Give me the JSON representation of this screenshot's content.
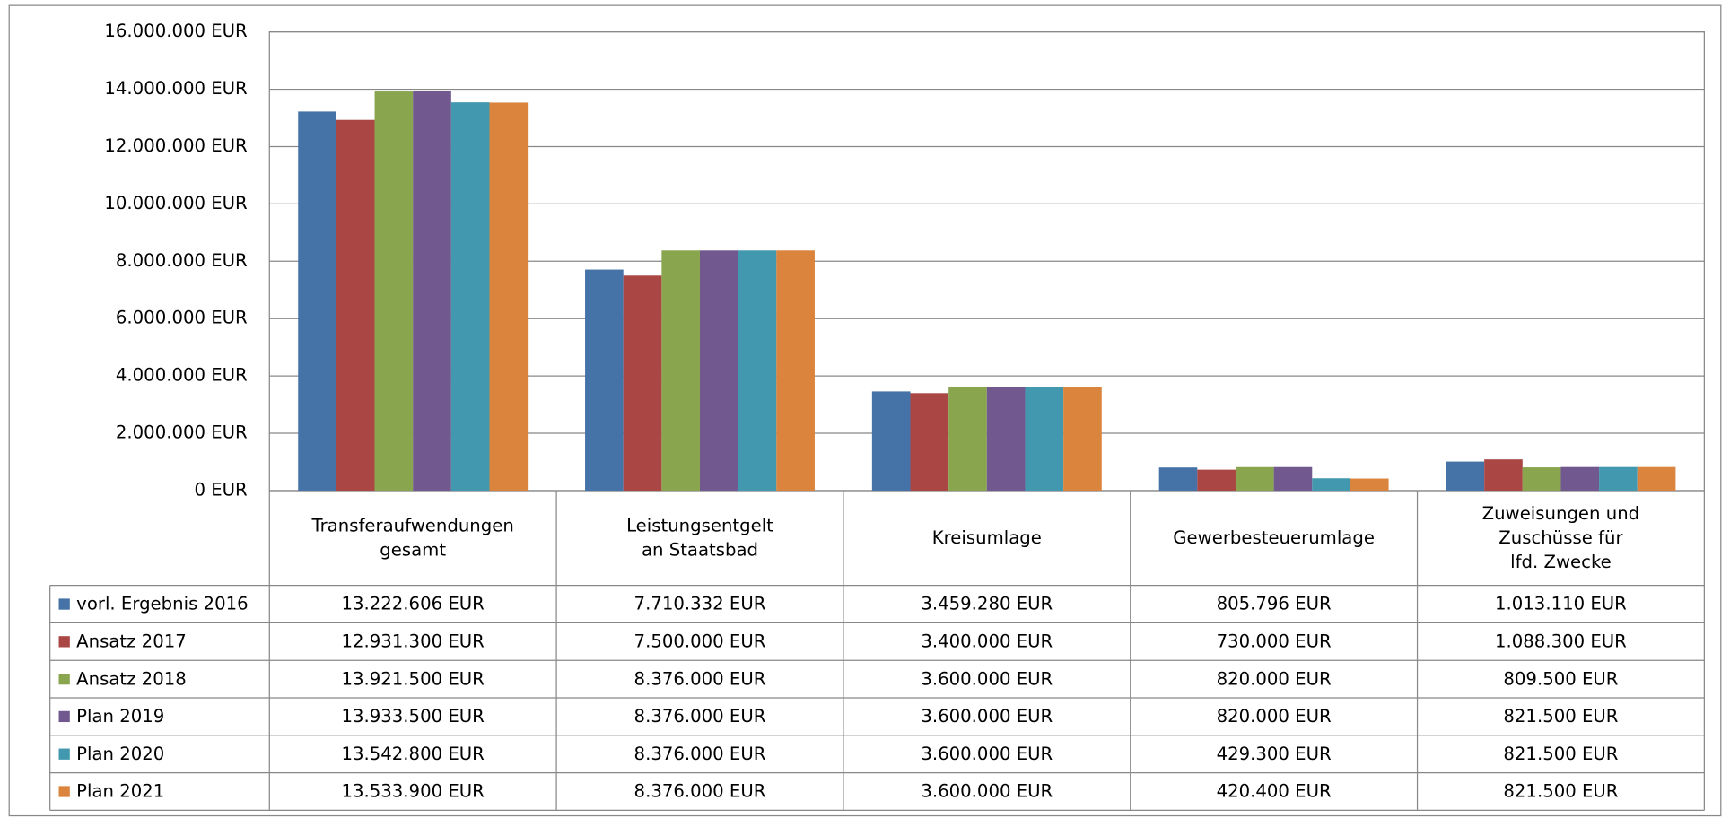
{
  "chart_data": {
    "type": "bar",
    "categories": [
      "Transferaufwendungen\ngesamt",
      "Leistungsentgelt\nan Staatsbad",
      "Kreisumlage",
      "Gewerbesteuerumlage",
      "Zuweisungen und\nZuschüsse für\nlfd. Zwecke"
    ],
    "series": [
      {
        "name": "vorl. Ergebnis 2016",
        "color": "#4572a7",
        "values": [
          13222606,
          7710332,
          3459280,
          805796,
          1013110
        ],
        "value_labels": [
          "13.222.606 EUR",
          "7.710.332 EUR",
          "3.459.280 EUR",
          "805.796 EUR",
          "1.013.110 EUR"
        ]
      },
      {
        "name": "Ansatz 2017",
        "color": "#aa4643",
        "values": [
          12931300,
          7500000,
          3400000,
          730000,
          1088300
        ],
        "value_labels": [
          "12.931.300 EUR",
          "7.500.000 EUR",
          "3.400.000 EUR",
          "730.000 EUR",
          "1.088.300 EUR"
        ]
      },
      {
        "name": "Ansatz 2018",
        "color": "#89a54e",
        "values": [
          13921500,
          8376000,
          3600000,
          820000,
          809500
        ],
        "value_labels": [
          "13.921.500 EUR",
          "8.376.000 EUR",
          "3.600.000 EUR",
          "820.000 EUR",
          "809.500 EUR"
        ]
      },
      {
        "name": "Plan 2019",
        "color": "#71588f",
        "values": [
          13933500,
          8376000,
          3600000,
          820000,
          821500
        ],
        "value_labels": [
          "13.933.500 EUR",
          "8.376.000 EUR",
          "3.600.000 EUR",
          "820.000 EUR",
          "821.500 EUR"
        ]
      },
      {
        "name": "Plan 2020",
        "color": "#4198af",
        "values": [
          13542800,
          8376000,
          3600000,
          429300,
          821500
        ],
        "value_labels": [
          "13.542.800 EUR",
          "8.376.000 EUR",
          "3.600.000 EUR",
          "429.300 EUR",
          "821.500 EUR"
        ]
      },
      {
        "name": "Plan 2021",
        "color": "#db843d",
        "values": [
          13533900,
          8376000,
          3600000,
          420400,
          821500
        ],
        "value_labels": [
          "13.533.900 EUR",
          "8.376.000 EUR",
          "3.600.000 EUR",
          "420.400 EUR",
          "821.500 EUR"
        ]
      }
    ],
    "ylim": [
      0,
      16000000
    ],
    "yticks": [
      {
        "value": 0,
        "label": "0 EUR"
      },
      {
        "value": 2000000,
        "label": "2.000.000 EUR"
      },
      {
        "value": 4000000,
        "label": "4.000.000 EUR"
      },
      {
        "value": 6000000,
        "label": "6.000.000 EUR"
      },
      {
        "value": 8000000,
        "label": "8.000.000 EUR"
      },
      {
        "value": 10000000,
        "label": "10.000.000 EUR"
      },
      {
        "value": 12000000,
        "label": "12.000.000 EUR"
      },
      {
        "value": 14000000,
        "label": "14.000.000 EUR"
      },
      {
        "value": 16000000,
        "label": "16.000.000 EUR"
      }
    ],
    "grid": true
  }
}
